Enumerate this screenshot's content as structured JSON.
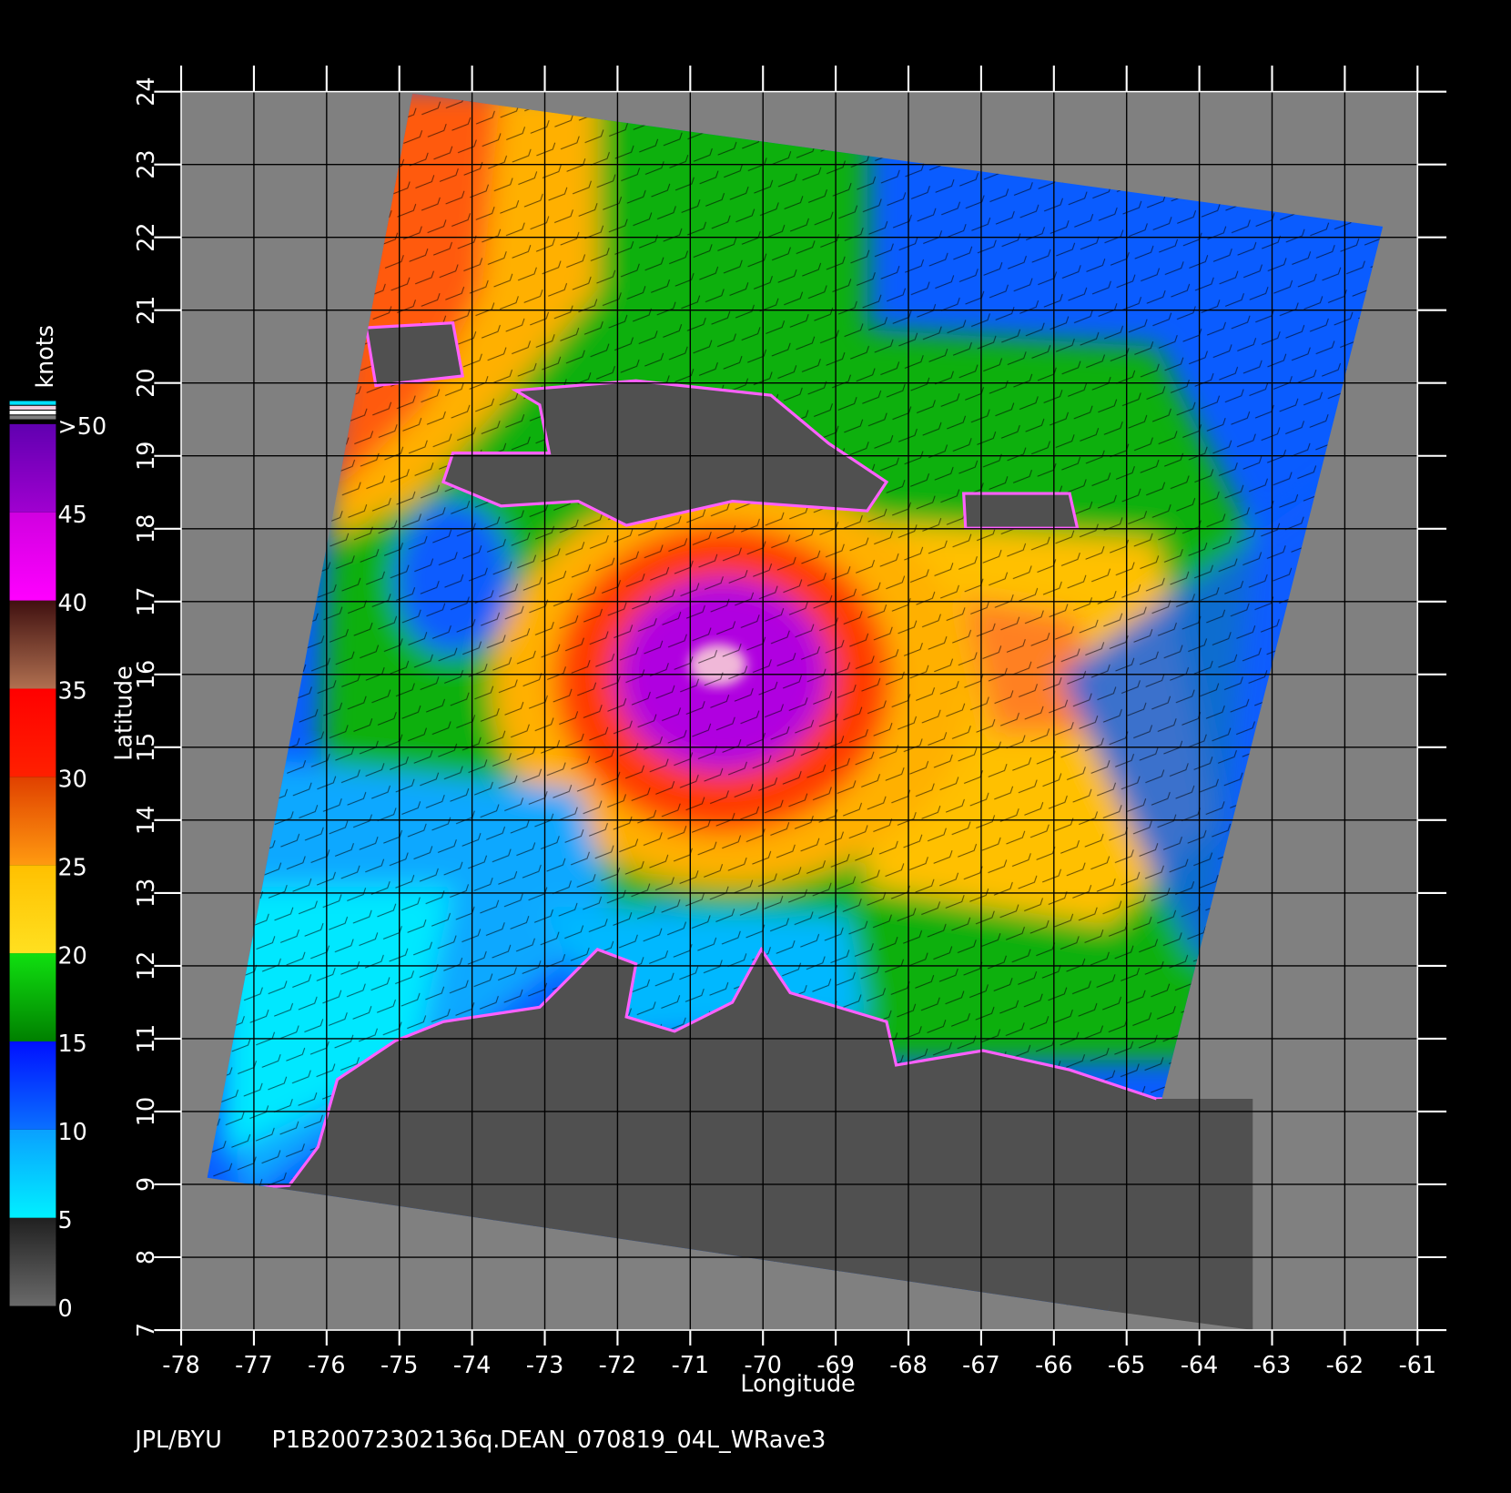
{
  "map": {
    "xlabel": "Longitude",
    "ylabel": "Latitude",
    "xlim": [
      -78,
      -61
    ],
    "ylim": [
      7,
      24
    ],
    "xticks": [
      -78,
      -77,
      -76,
      -75,
      -74,
      -73,
      -72,
      -71,
      -70,
      -69,
      -68,
      -67,
      -66,
      -65,
      -64,
      -63,
      -62,
      -61
    ],
    "yticks": [
      7,
      8,
      9,
      10,
      11,
      12,
      13,
      14,
      15,
      16,
      17,
      18,
      19,
      20,
      21,
      22,
      23,
      24
    ],
    "colorbar": {
      "title": "knots",
      "ticks": [
        0,
        5,
        10,
        15,
        20,
        25,
        30,
        35,
        40,
        45,
        {
          "value": 50,
          "label": ">50"
        }
      ],
      "colors": [
        [
          "#6a6a6a",
          "#202020"
        ],
        [
          "#00f0ff",
          "#0aa0ff"
        ],
        [
          "#0a70ff",
          "#0010ff"
        ],
        [
          "#008000",
          "#10e010"
        ],
        [
          "#ffe020",
          "#ffc000"
        ],
        [
          "#ff9a10",
          "#e04000"
        ],
        [
          "#ff2000",
          "#ff0000"
        ],
        [
          "#b07050",
          "#401010"
        ],
        [
          "#ff00ff",
          "#d000e0"
        ],
        [
          "#a000d0",
          "#6000b0"
        ]
      ]
    },
    "footer": {
      "source": "JPL/BYU",
      "product": "P1B20072302136q.DEAN_070819_04L_WRave3"
    }
  }
}
